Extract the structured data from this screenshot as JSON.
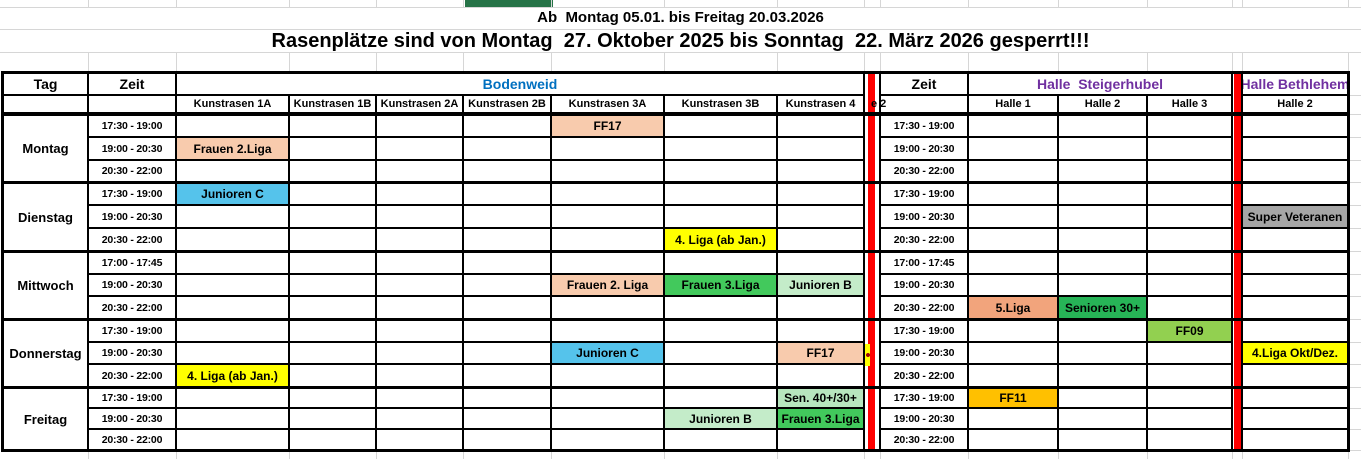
{
  "titles": {
    "period": "Ab  Montag 05.01. bis Freitag 20.03.2026",
    "warning": "Rasenplätze sind von Montag  27. Oktober 2025 bis Sonntag  22. März 2026 gesperrt!!!"
  },
  "colors": {
    "peach": "#F8CBAD",
    "salmon": "#F2A47C",
    "cyan": "#55C3EB",
    "green": "#42C95C",
    "green_dark": "#27B457",
    "light_green": "#C4ECC9",
    "light_green2": "#B7E6BE",
    "yellow_green": "#92D050",
    "yellow": "#FFFF00",
    "orange": "#FFC000",
    "gray": "#A6A6A6",
    "red": "#FF0000",
    "blue": "#0070C0",
    "purple": "#7030A0",
    "top_green": "#267347"
  },
  "header": {
    "tag": "Tag",
    "zeit_left": "Zeit",
    "zeit_right": "Zeit",
    "group_left": "Bodenweid",
    "group_mid": "Halle  Steigerhubel",
    "group_right": "Halle Bethlehem",
    "left_columns": [
      "Kunstrasen 1A",
      "Kunstrasen 1B",
      "Kunstrasen 2A",
      "Kunstrasen 2B",
      "Kunstrasen 3A",
      "Kunstrasen 3B",
      "Kunstrasen 4"
    ],
    "mid_columns": [
      "Halle 1",
      "Halle 2",
      "Halle 3"
    ],
    "right_columns": [
      "Halle 2"
    ],
    "divider_label": "e 2"
  },
  "days": [
    {
      "name": "Montag",
      "slots": [
        {
          "time": "17:30 - 19:00",
          "entries": [
            {
              "area": "left",
              "col": 4,
              "label": "FF17",
              "color": "peach"
            }
          ]
        },
        {
          "time": "19:00 - 20:30",
          "entries": [
            {
              "area": "left",
              "col": 0,
              "label": "Frauen 2.Liga",
              "color": "peach"
            }
          ]
        },
        {
          "time": "20:30 - 22:00",
          "entries": []
        }
      ]
    },
    {
      "name": "Dienstag",
      "slots": [
        {
          "time": "17:30 - 19:00",
          "entries": [
            {
              "area": "left",
              "col": 0,
              "label": "Junioren C",
              "color": "cyan"
            }
          ]
        },
        {
          "time": "19:00 - 20:30",
          "entries": [
            {
              "area": "right",
              "col": 0,
              "label": "Super Veteranen",
              "color": "gray"
            }
          ]
        },
        {
          "time": "20:30 - 22:00",
          "entries": [
            {
              "area": "left",
              "col": 5,
              "label": "4. Liga (ab Jan.)",
              "color": "yellow"
            }
          ]
        }
      ]
    },
    {
      "name": "Mittwoch",
      "slots": [
        {
          "time": "17:00 - 17:45",
          "entries": []
        },
        {
          "time": "19:00 - 20:30",
          "entries": [
            {
              "area": "left",
              "col": 4,
              "label": "Frauen 2. Liga",
              "color": "peach"
            },
            {
              "area": "left",
              "col": 5,
              "label": "Frauen 3.Liga",
              "color": "green"
            },
            {
              "area": "left",
              "col": 6,
              "label": "Junioren B",
              "color": "light_green"
            }
          ]
        },
        {
          "time": "20:30 - 22:00",
          "entries": [
            {
              "area": "mid",
              "col": 0,
              "label": "5.Liga",
              "color": "salmon"
            },
            {
              "area": "mid",
              "col": 1,
              "label": "Senioren 30+",
              "color": "green_dark"
            }
          ]
        }
      ]
    },
    {
      "name": "Donnerstag",
      "slots": [
        {
          "time": "17:30 - 19:00",
          "entries": [
            {
              "area": "mid",
              "col": 2,
              "label": "FF09",
              "color": "yellow_green"
            }
          ]
        },
        {
          "time": "19:00 - 20:30",
          "divider_fragment": true,
          "entries": [
            {
              "area": "left",
              "col": 4,
              "label": "Junioren C",
              "color": "cyan"
            },
            {
              "area": "left",
              "col": 6,
              "label": "FF17",
              "color": "peach"
            },
            {
              "area": "right",
              "col": 0,
              "label": "4.Liga Okt/Dez.",
              "color": "yellow"
            }
          ]
        },
        {
          "time": "20:30 - 22:00",
          "entries": [
            {
              "area": "left",
              "col": 0,
              "label": "4. Liga (ab Jan.)",
              "color": "yellow"
            }
          ]
        }
      ]
    },
    {
      "name": "Freitag",
      "slots": [
        {
          "time": "17:30 - 19:00",
          "entries": [
            {
              "area": "left",
              "col": 6,
              "label": "Sen. 40+/30+",
              "color": "light_green2"
            },
            {
              "area": "mid",
              "col": 0,
              "label": "FF11",
              "color": "orange"
            }
          ]
        },
        {
          "time": "19:00 - 20:30",
          "entries": [
            {
              "area": "left",
              "col": 5,
              "label": "Junioren B",
              "color": "light_green"
            },
            {
              "area": "left",
              "col": 6,
              "label": "Frauen 3.Liga",
              "color": "green"
            }
          ]
        },
        {
          "time": "20:30 - 22:00",
          "entries": []
        }
      ]
    }
  ]
}
